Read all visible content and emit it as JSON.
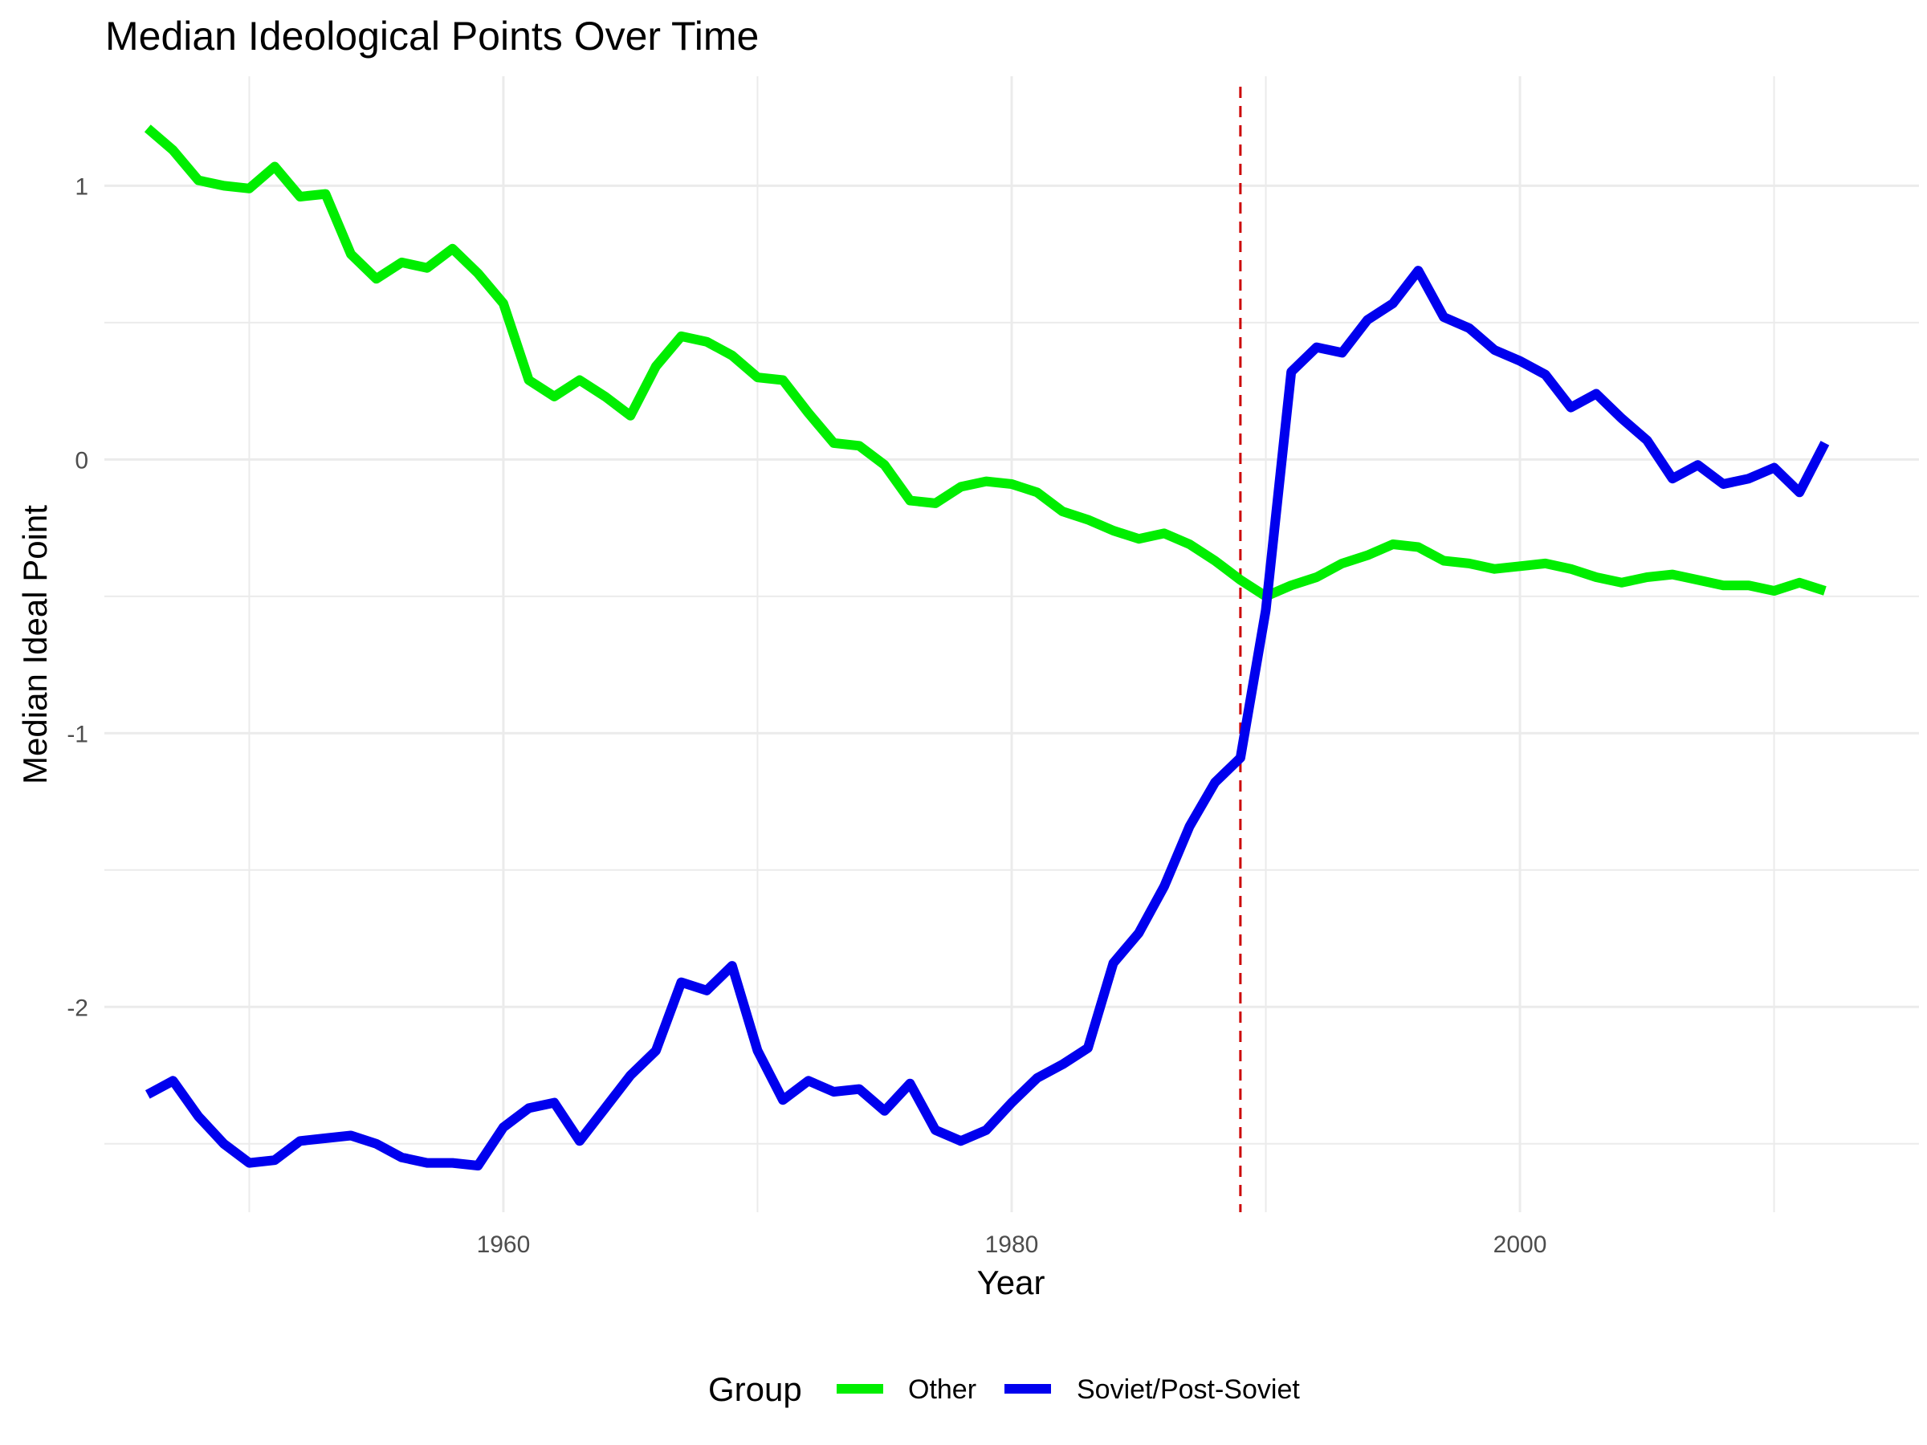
{
  "chart_data": {
    "type": "line",
    "title": "Median Ideological Points Over Time",
    "xlabel": "Year",
    "ylabel": "Median Ideal Point",
    "xlim": [
      1944.3,
      2015.7
    ],
    "ylim": [
      -2.75,
      1.4
    ],
    "x_ticks": [
      1960,
      1980,
      2000
    ],
    "x_tick_labels": [
      "1960",
      "1980",
      "2000"
    ],
    "y_ticks": [
      1,
      0,
      -1,
      -2
    ],
    "y_tick_labels": [
      "1",
      "0",
      "-1",
      "-2"
    ],
    "grid": true,
    "legend": {
      "title": "Group",
      "position": "bottom"
    },
    "reference_line": {
      "x": 1989,
      "color": "#cc0000",
      "style": "dashed"
    },
    "series": [
      {
        "name": "Other",
        "color": "#00ee00",
        "x": [
          1946,
          1947,
          1948,
          1949,
          1950,
          1951,
          1952,
          1953,
          1954,
          1955,
          1956,
          1957,
          1958,
          1959,
          1960,
          1961,
          1962,
          1963,
          1964,
          1965,
          1966,
          1967,
          1968,
          1969,
          1970,
          1971,
          1972,
          1973,
          1974,
          1975,
          1976,
          1977,
          1978,
          1979,
          1980,
          1981,
          1982,
          1983,
          1984,
          1985,
          1986,
          1987,
          1988,
          1989,
          1990,
          1991,
          1992,
          1993,
          1994,
          1995,
          1996,
          1997,
          1998,
          1999,
          2000,
          2001,
          2002,
          2003,
          2004,
          2005,
          2006,
          2007,
          2008,
          2009,
          2010,
          2011,
          2012
        ],
        "values": [
          1.21,
          1.13,
          1.02,
          1.0,
          0.99,
          1.07,
          0.96,
          0.97,
          0.75,
          0.66,
          0.72,
          0.7,
          0.77,
          0.68,
          0.57,
          0.29,
          0.23,
          0.29,
          0.23,
          0.16,
          0.34,
          0.45,
          0.43,
          0.38,
          0.3,
          0.29,
          0.17,
          0.06,
          0.05,
          -0.02,
          -0.15,
          -0.16,
          -0.1,
          -0.08,
          -0.09,
          -0.12,
          -0.19,
          -0.22,
          -0.26,
          -0.29,
          -0.27,
          -0.31,
          -0.37,
          -0.44,
          -0.5,
          -0.46,
          -0.43,
          -0.38,
          -0.35,
          -0.31,
          -0.32,
          -0.37,
          -0.38,
          -0.4,
          -0.39,
          -0.38,
          -0.4,
          -0.43,
          -0.45,
          -0.43,
          -0.42,
          -0.44,
          -0.46,
          -0.46,
          -0.48,
          -0.45,
          -0.48
        ]
      },
      {
        "name": "Soviet/Post-Soviet",
        "color": "#0000ee",
        "x": [
          1946,
          1947,
          1948,
          1949,
          1950,
          1951,
          1952,
          1953,
          1954,
          1955,
          1956,
          1957,
          1958,
          1959,
          1960,
          1961,
          1962,
          1963,
          1964,
          1965,
          1966,
          1967,
          1968,
          1969,
          1970,
          1971,
          1972,
          1973,
          1974,
          1975,
          1976,
          1977,
          1978,
          1979,
          1980,
          1981,
          1982,
          1983,
          1984,
          1985,
          1986,
          1987,
          1988,
          1989,
          1990,
          1991,
          1992,
          1993,
          1994,
          1995,
          1996,
          1997,
          1998,
          1999,
          2000,
          2001,
          2002,
          2003,
          2004,
          2005,
          2006,
          2007,
          2008,
          2009,
          2010,
          2011,
          2012
        ],
        "values": [
          -2.32,
          -2.27,
          -2.4,
          -2.5,
          -2.57,
          -2.56,
          -2.49,
          -2.48,
          -2.47,
          -2.5,
          -2.55,
          -2.57,
          -2.57,
          -2.58,
          -2.44,
          -2.37,
          -2.35,
          -2.49,
          -2.37,
          -2.25,
          -2.16,
          -1.91,
          -1.94,
          -1.85,
          -2.16,
          -2.34,
          -2.27,
          -2.31,
          -2.3,
          -2.38,
          -2.28,
          -2.45,
          -2.49,
          -2.45,
          -2.35,
          -2.26,
          -2.21,
          -2.15,
          -1.84,
          -1.73,
          -1.56,
          -1.34,
          -1.18,
          -1.09,
          -0.55,
          0.32,
          0.41,
          0.39,
          0.51,
          0.57,
          0.69,
          0.52,
          0.48,
          0.4,
          0.36,
          0.31,
          0.19,
          0.24,
          0.15,
          0.07,
          -0.07,
          -0.02,
          -0.09,
          -0.07,
          -0.03,
          -0.12,
          0.06
        ]
      }
    ]
  }
}
